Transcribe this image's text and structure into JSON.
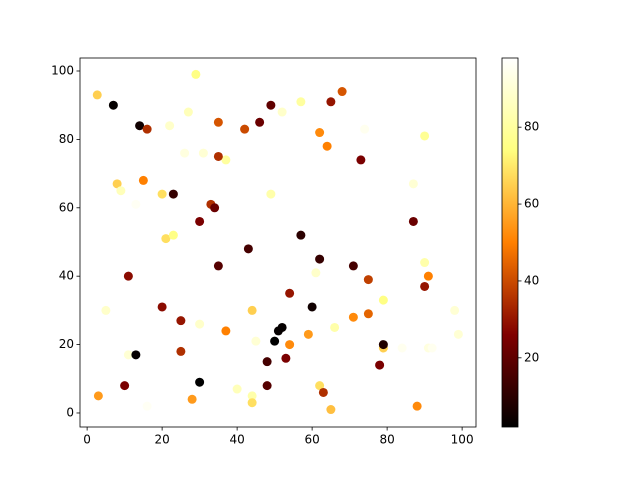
{
  "chart_data": {
    "type": "scatter",
    "x": [
      2.7,
      7,
      14,
      16,
      29,
      27,
      22,
      26,
      31,
      37,
      35,
      35,
      42,
      46,
      49,
      52,
      57,
      65,
      68,
      62,
      64,
      73,
      74,
      90,
      8,
      9,
      15,
      13,
      20,
      23,
      33,
      34,
      49,
      87,
      87,
      21,
      23,
      30,
      57,
      43,
      62,
      61,
      35,
      11,
      71,
      75,
      90,
      91,
      90,
      54,
      5,
      20,
      44,
      25,
      30,
      37,
      60,
      52,
      51,
      50,
      59,
      66,
      71,
      75,
      79,
      98,
      99,
      91,
      92,
      84,
      79,
      79,
      78,
      45,
      54,
      53,
      48,
      25,
      11,
      13,
      10,
      3,
      16,
      30,
      40,
      44,
      44,
      28,
      48,
      62,
      63,
      65,
      88
    ],
    "y": [
      93,
      90,
      84,
      83,
      99,
      88,
      84,
      76,
      76,
      74,
      75,
      85,
      83,
      85,
      90,
      88,
      91,
      91,
      94,
      82,
      78,
      74,
      83,
      81,
      67,
      65,
      68,
      61,
      64,
      64,
      61,
      60,
      64,
      67,
      56,
      51,
      52,
      56,
      52,
      48,
      45,
      41,
      43,
      40,
      43,
      39,
      44,
      40,
      37,
      35,
      30,
      31,
      30,
      27,
      26,
      24,
      31,
      25,
      24,
      21,
      23,
      25,
      28,
      29,
      33,
      30,
      23,
      19,
      19,
      19,
      19,
      20,
      14,
      21,
      20,
      16,
      15,
      18,
      17,
      17,
      8,
      5,
      2,
      9,
      7,
      5,
      3,
      4,
      8,
      8,
      6,
      1,
      2
    ],
    "c": [
      65,
      3,
      5,
      35,
      75,
      85,
      88,
      92,
      90,
      80,
      35,
      42,
      40,
      22,
      20,
      88,
      80,
      30,
      42,
      52,
      50,
      25,
      95,
      78,
      65,
      85,
      50,
      96,
      68,
      12,
      35,
      22,
      82,
      90,
      22,
      68,
      75,
      25,
      10,
      15,
      12,
      88,
      18,
      28,
      15,
      38,
      82,
      50,
      30,
      30,
      88,
      28,
      65,
      30,
      88,
      50,
      5,
      3,
      3,
      2,
      55,
      82,
      52,
      45,
      75,
      90,
      90,
      92,
      95,
      95,
      65,
      8,
      25,
      90,
      52,
      25,
      15,
      35,
      90,
      3,
      25,
      55,
      96,
      2,
      85,
      82,
      68,
      55,
      18,
      68,
      35,
      62,
      52
    ],
    "colormap": "afmhot",
    "clim": [
      2,
      98
    ],
    "cticks": [
      20,
      40,
      60,
      80
    ],
    "xlim": [
      -1.9,
      103.7
    ],
    "ylim": [
      -4.1,
      103.8
    ],
    "xticks": [
      0,
      20,
      40,
      60,
      80,
      100
    ],
    "yticks": [
      0,
      20,
      40,
      60,
      80,
      100
    ]
  }
}
